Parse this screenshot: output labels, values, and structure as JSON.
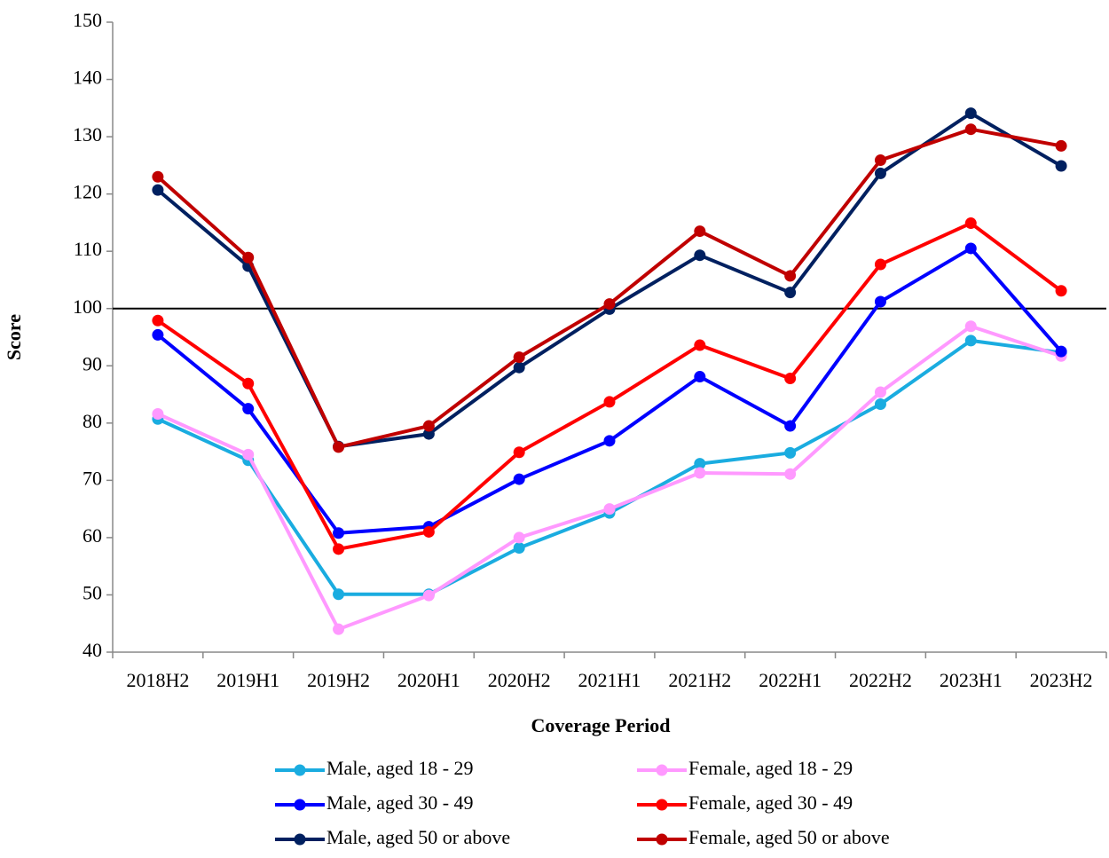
{
  "chart_data": {
    "type": "line",
    "x_label": "Coverage Period",
    "y_label": "Score",
    "categories": [
      "2018H2",
      "2019H1",
      "2019H2",
      "2020H1",
      "2020H2",
      "2021H1",
      "2021H2",
      "2022H1",
      "2022H2",
      "2023H1",
      "2023H2"
    ],
    "ylim": [
      40,
      150
    ],
    "yticks": [
      40,
      50,
      60,
      70,
      80,
      90,
      100,
      110,
      120,
      130,
      140,
      150
    ],
    "reference_line": 100,
    "series": [
      {
        "name": "Male, aged 18 - 29",
        "color": "#1AACE0",
        "values": [
          80.7,
          73.5,
          50.1,
          50.1,
          58.2,
          64.3,
          72.9,
          74.8,
          83.3,
          94.4,
          92.3
        ]
      },
      {
        "name": "Female, aged 18 - 29",
        "color": "#FF99FF",
        "values": [
          81.6,
          74.5,
          44.0,
          49.9,
          60.0,
          65.0,
          71.3,
          71.1,
          85.4,
          96.9,
          91.7
        ]
      },
      {
        "name": "Male, aged 30 - 49",
        "color": "#0000FF",
        "values": [
          95.4,
          82.5,
          60.8,
          61.9,
          70.2,
          76.9,
          88.1,
          79.5,
          101.2,
          110.5,
          92.5
        ]
      },
      {
        "name": "Female, aged 30 - 49",
        "color": "#FF0000",
        "values": [
          97.9,
          86.9,
          58.0,
          61.0,
          74.9,
          83.7,
          93.6,
          87.8,
          107.7,
          114.9,
          103.1
        ]
      },
      {
        "name": "Male, aged 50 or above",
        "color": "#002060",
        "values": [
          120.7,
          107.4,
          75.9,
          78.1,
          89.7,
          99.9,
          109.3,
          102.8,
          123.6,
          134.1,
          124.9
        ]
      },
      {
        "name": "Female, aged 50 or above",
        "color": "#C00000",
        "values": [
          123.0,
          108.9,
          75.8,
          79.5,
          91.5,
          100.8,
          113.5,
          105.7,
          125.9,
          131.3,
          128.4
        ]
      }
    ]
  }
}
